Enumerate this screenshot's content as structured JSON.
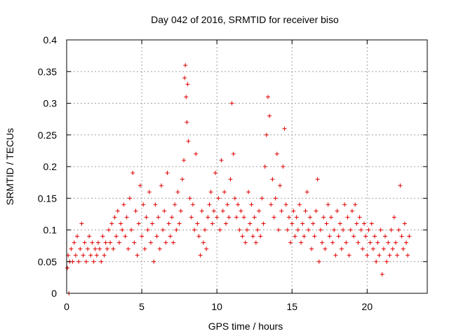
{
  "chart_data": {
    "type": "scatter",
    "title": "Day 042 of 2016, SRMTID for receiver biso",
    "xlabel": "GPS time / hours",
    "ylabel": "SRMTID / TECUs",
    "xlim": [
      0,
      24
    ],
    "ylim": [
      0,
      0.4
    ],
    "grid": true,
    "marker": "+",
    "color": "#e00000",
    "xticks": [
      0,
      5,
      10,
      15,
      20
    ],
    "xtick_labels": [
      "0",
      "5",
      "10",
      "15",
      "20"
    ],
    "yticks": [
      0,
      0.05,
      0.1,
      0.15,
      0.2,
      0.25,
      0.3,
      0.35,
      0.4
    ],
    "ytick_labels": [
      "0",
      "0.05",
      "0.1",
      "0.15",
      "0.2",
      "0.25",
      "0.3",
      "0.35",
      "0.4"
    ],
    "series": [
      {
        "name": "SRMTID",
        "points": [
          [
            0.05,
            0.04
          ],
          [
            0.1,
            0.06
          ],
          [
            0.15,
            0.0
          ],
          [
            0.2,
            0.05
          ],
          [
            0.3,
            0.07
          ],
          [
            0.4,
            0.05
          ],
          [
            0.5,
            0.08
          ],
          [
            0.6,
            0.06
          ],
          [
            0.7,
            0.09
          ],
          [
            0.8,
            0.05
          ],
          [
            0.9,
            0.07
          ],
          [
            1.0,
            0.11
          ],
          [
            1.1,
            0.06
          ],
          [
            1.2,
            0.08
          ],
          [
            1.3,
            0.05
          ],
          [
            1.4,
            0.07
          ],
          [
            1.5,
            0.09
          ],
          [
            1.6,
            0.06
          ],
          [
            1.7,
            0.08
          ],
          [
            1.8,
            0.05
          ],
          [
            1.9,
            0.07
          ],
          [
            2.0,
            0.06
          ],
          [
            2.1,
            0.08
          ],
          [
            2.2,
            0.07
          ],
          [
            2.3,
            0.05
          ],
          [
            2.4,
            0.09
          ],
          [
            2.5,
            0.06
          ],
          [
            2.6,
            0.08
          ],
          [
            2.7,
            0.07
          ],
          [
            2.8,
            0.1
          ],
          [
            2.9,
            0.08
          ],
          [
            3.0,
            0.11
          ],
          [
            3.1,
            0.07
          ],
          [
            3.2,
            0.12
          ],
          [
            3.3,
            0.09
          ],
          [
            3.4,
            0.13
          ],
          [
            3.5,
            0.08
          ],
          [
            3.6,
            0.11
          ],
          [
            3.7,
            0.1
          ],
          [
            3.8,
            0.14
          ],
          [
            3.9,
            0.09
          ],
          [
            4.0,
            0.12
          ],
          [
            4.1,
            0.07
          ],
          [
            4.2,
            0.15
          ],
          [
            4.3,
            0.1
          ],
          [
            4.4,
            0.19
          ],
          [
            4.5,
            0.08
          ],
          [
            4.6,
            0.13
          ],
          [
            4.7,
            0.06
          ],
          [
            4.8,
            0.11
          ],
          [
            4.9,
            0.17
          ],
          [
            5.0,
            0.09
          ],
          [
            5.1,
            0.14
          ],
          [
            5.2,
            0.07
          ],
          [
            5.3,
            0.12
          ],
          [
            5.4,
            0.1
          ],
          [
            5.5,
            0.16
          ],
          [
            5.6,
            0.08
          ],
          [
            5.7,
            0.11
          ],
          [
            5.8,
            0.05
          ],
          [
            5.9,
            0.14
          ],
          [
            6.0,
            0.09
          ],
          [
            6.1,
            0.12
          ],
          [
            6.2,
            0.07
          ],
          [
            6.3,
            0.17
          ],
          [
            6.4,
            0.1
          ],
          [
            6.5,
            0.13
          ],
          [
            6.6,
            0.08
          ],
          [
            6.7,
            0.19
          ],
          [
            6.8,
            0.11
          ],
          [
            6.9,
            0.09
          ],
          [
            7.0,
            0.12
          ],
          [
            7.1,
            0.08
          ],
          [
            7.2,
            0.14
          ],
          [
            7.3,
            0.1
          ],
          [
            7.4,
            0.16
          ],
          [
            7.5,
            0.11
          ],
          [
            7.6,
            0.13
          ],
          [
            7.7,
            0.18
          ],
          [
            7.8,
            0.21
          ],
          [
            7.85,
            0.34
          ],
          [
            7.9,
            0.36
          ],
          [
            7.95,
            0.31
          ],
          [
            8.0,
            0.27
          ],
          [
            8.05,
            0.33
          ],
          [
            8.1,
            0.24
          ],
          [
            8.2,
            0.15
          ],
          [
            8.3,
            0.12
          ],
          [
            8.4,
            0.14
          ],
          [
            8.5,
            0.1
          ],
          [
            8.6,
            0.22
          ],
          [
            8.7,
            0.11
          ],
          [
            8.8,
            0.09
          ],
          [
            8.9,
            0.06
          ],
          [
            9.0,
            0.13
          ],
          [
            9.1,
            0.08
          ],
          [
            9.2,
            0.1
          ],
          [
            9.3,
            0.07
          ],
          [
            9.4,
            0.12
          ],
          [
            9.5,
            0.14
          ],
          [
            9.6,
            0.16
          ],
          [
            9.7,
            0.11
          ],
          [
            9.8,
            0.13
          ],
          [
            9.9,
            0.19
          ],
          [
            10.0,
            0.12
          ],
          [
            10.1,
            0.15
          ],
          [
            10.2,
            0.1
          ],
          [
            10.3,
            0.21
          ],
          [
            10.4,
            0.13
          ],
          [
            10.5,
            0.16
          ],
          [
            10.6,
            0.11
          ],
          [
            10.7,
            0.14
          ],
          [
            10.8,
            0.12
          ],
          [
            10.9,
            0.18
          ],
          [
            11.0,
            0.3
          ],
          [
            11.1,
            0.22
          ],
          [
            11.2,
            0.15
          ],
          [
            11.3,
            0.12
          ],
          [
            11.4,
            0.14
          ],
          [
            11.5,
            0.1
          ],
          [
            11.6,
            0.13
          ],
          [
            11.7,
            0.09
          ],
          [
            11.8,
            0.12
          ],
          [
            11.9,
            0.08
          ],
          [
            12.0,
            0.1
          ],
          [
            12.1,
            0.16
          ],
          [
            12.2,
            0.11
          ],
          [
            12.3,
            0.14
          ],
          [
            12.4,
            0.09
          ],
          [
            12.5,
            0.12
          ],
          [
            12.6,
            0.08
          ],
          [
            12.7,
            0.1
          ],
          [
            12.8,
            0.13
          ],
          [
            12.9,
            0.09
          ],
          [
            13.0,
            0.15
          ],
          [
            13.1,
            0.11
          ],
          [
            13.2,
            0.2
          ],
          [
            13.3,
            0.25
          ],
          [
            13.4,
            0.31
          ],
          [
            13.5,
            0.28
          ],
          [
            13.6,
            0.14
          ],
          [
            13.7,
            0.18
          ],
          [
            13.8,
            0.12
          ],
          [
            13.9,
            0.15
          ],
          [
            14.0,
            0.22
          ],
          [
            14.1,
            0.1
          ],
          [
            14.2,
            0.17
          ],
          [
            14.3,
            0.13
          ],
          [
            14.4,
            0.2
          ],
          [
            14.5,
            0.26
          ],
          [
            14.6,
            0.14
          ],
          [
            14.7,
            0.1
          ],
          [
            14.8,
            0.12
          ],
          [
            14.9,
            0.08
          ],
          [
            15.0,
            0.11
          ],
          [
            15.1,
            0.13
          ],
          [
            15.2,
            0.09
          ],
          [
            15.3,
            0.12
          ],
          [
            15.4,
            0.1
          ],
          [
            15.5,
            0.14
          ],
          [
            15.6,
            0.08
          ],
          [
            15.7,
            0.11
          ],
          [
            15.8,
            0.09
          ],
          [
            15.9,
            0.13
          ],
          [
            16.0,
            0.16
          ],
          [
            16.1,
            0.1
          ],
          [
            16.2,
            0.12
          ],
          [
            16.3,
            0.07
          ],
          [
            16.4,
            0.11
          ],
          [
            16.5,
            0.09
          ],
          [
            16.6,
            0.13
          ],
          [
            16.7,
            0.18
          ],
          [
            16.8,
            0.05
          ],
          [
            16.9,
            0.1
          ],
          [
            17.0,
            0.08
          ],
          [
            17.1,
            0.12
          ],
          [
            17.2,
            0.07
          ],
          [
            17.3,
            0.11
          ],
          [
            17.4,
            0.14
          ],
          [
            17.5,
            0.09
          ],
          [
            17.6,
            0.12
          ],
          [
            17.7,
            0.08
          ],
          [
            17.8,
            0.1
          ],
          [
            17.9,
            0.06
          ],
          [
            18.0,
            0.13
          ],
          [
            18.1,
            0.09
          ],
          [
            18.2,
            0.11
          ],
          [
            18.3,
            0.07
          ],
          [
            18.4,
            0.1
          ],
          [
            18.5,
            0.14
          ],
          [
            18.6,
            0.08
          ],
          [
            18.7,
            0.12
          ],
          [
            18.8,
            0.06
          ],
          [
            18.9,
            0.1
          ],
          [
            19.0,
            0.13
          ],
          [
            19.1,
            0.09
          ],
          [
            19.2,
            0.14
          ],
          [
            19.3,
            0.11
          ],
          [
            19.4,
            0.08
          ],
          [
            19.5,
            0.12
          ],
          [
            19.6,
            0.1
          ],
          [
            19.7,
            0.07
          ],
          [
            19.8,
            0.11
          ],
          [
            19.9,
            0.09
          ],
          [
            20.0,
            0.06
          ],
          [
            20.1,
            0.1
          ],
          [
            20.2,
            0.08
          ],
          [
            20.3,
            0.11
          ],
          [
            20.4,
            0.07
          ],
          [
            20.5,
            0.09
          ],
          [
            20.6,
            0.05
          ],
          [
            20.7,
            0.08
          ],
          [
            20.8,
            0.06
          ],
          [
            20.9,
            0.1
          ],
          [
            21.0,
            0.03
          ],
          [
            21.1,
            0.07
          ],
          [
            21.2,
            0.09
          ],
          [
            21.3,
            0.05
          ],
          [
            21.4,
            0.08
          ],
          [
            21.5,
            0.06
          ],
          [
            21.6,
            0.1
          ],
          [
            21.7,
            0.07
          ],
          [
            21.8,
            0.12
          ],
          [
            21.9,
            0.08
          ],
          [
            22.0,
            0.06
          ],
          [
            22.1,
            0.1
          ],
          [
            22.2,
            0.17
          ],
          [
            22.3,
            0.09
          ],
          [
            22.4,
            0.07
          ],
          [
            22.5,
            0.11
          ],
          [
            22.6,
            0.08
          ],
          [
            22.7,
            0.06
          ],
          [
            22.8,
            0.09
          ]
        ]
      }
    ]
  }
}
